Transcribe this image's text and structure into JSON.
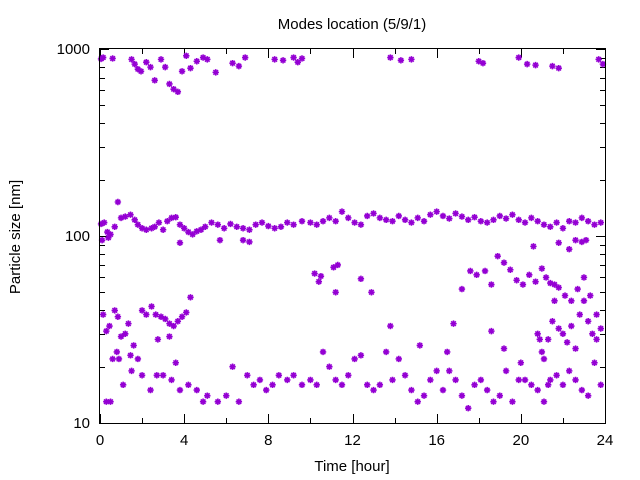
{
  "chart_data": {
    "type": "scatter",
    "title": "Modes location (5/9/1)",
    "xlabel": "Time [hour]",
    "ylabel": "Particle size [nm]",
    "xlim": [
      0,
      24
    ],
    "ylim": [
      10,
      1000
    ],
    "yscale": "log",
    "x_ticks": [
      0,
      4,
      8,
      12,
      16,
      20,
      24
    ],
    "y_ticks": [
      10,
      100,
      1000
    ],
    "x_tick_labels": [
      "0",
      "4",
      "8",
      "12",
      "16",
      "20",
      "24"
    ],
    "y_tick_labels": [
      "10",
      "100",
      "1000"
    ],
    "grid": false,
    "legend": "none",
    "marker_color": "#9400d3",
    "series": [
      {
        "name": "",
        "points": [
          [
            0.05,
            885
          ],
          [
            0.15,
            900
          ],
          [
            0.6,
            890
          ],
          [
            1.5,
            880
          ],
          [
            1.65,
            830
          ],
          [
            1.8,
            780
          ],
          [
            1.95,
            760
          ],
          [
            2.2,
            850
          ],
          [
            2.4,
            800
          ],
          [
            2.6,
            680
          ],
          [
            2.9,
            880
          ],
          [
            3.1,
            800
          ],
          [
            3.3,
            650
          ],
          [
            3.5,
            610
          ],
          [
            3.7,
            590
          ],
          [
            3.9,
            760
          ],
          [
            4.1,
            920
          ],
          [
            4.3,
            790
          ],
          [
            4.6,
            860
          ],
          [
            4.9,
            900
          ],
          [
            5.1,
            880
          ],
          [
            5.5,
            750
          ],
          [
            6.3,
            840
          ],
          [
            6.6,
            810
          ],
          [
            6.9,
            900
          ],
          [
            8.3,
            880
          ],
          [
            8.7,
            870
          ],
          [
            9.2,
            900
          ],
          [
            9.4,
            850
          ],
          [
            9.6,
            890
          ],
          [
            13.8,
            900
          ],
          [
            14.3,
            870
          ],
          [
            14.8,
            880
          ],
          [
            18.0,
            860
          ],
          [
            18.2,
            840
          ],
          [
            19.9,
            900
          ],
          [
            20.3,
            830
          ],
          [
            20.7,
            820
          ],
          [
            21.5,
            810
          ],
          [
            21.8,
            790
          ],
          [
            23.7,
            880
          ],
          [
            23.9,
            830
          ],
          [
            0.05,
            116
          ],
          [
            0.2,
            118
          ],
          [
            0.35,
            105
          ],
          [
            0.5,
            102
          ],
          [
            0.7,
            112
          ],
          [
            0.85,
            152
          ],
          [
            1.0,
            125
          ],
          [
            1.2,
            127
          ],
          [
            1.45,
            130
          ],
          [
            1.65,
            122
          ],
          [
            1.8,
            115
          ],
          [
            2.0,
            110
          ],
          [
            2.2,
            108
          ],
          [
            2.45,
            110
          ],
          [
            2.6,
            112
          ],
          [
            2.8,
            118
          ],
          [
            3.0,
            108
          ],
          [
            3.2,
            120
          ],
          [
            3.4,
            125
          ],
          [
            3.6,
            126
          ],
          [
            3.8,
            115
          ],
          [
            4.0,
            110
          ],
          [
            4.2,
            105
          ],
          [
            4.4,
            102
          ],
          [
            4.6,
            106
          ],
          [
            4.8,
            108
          ],
          [
            5.0,
            112
          ],
          [
            5.3,
            118
          ],
          [
            5.6,
            115
          ],
          [
            5.9,
            110
          ],
          [
            6.2,
            116
          ],
          [
            6.5,
            112
          ],
          [
            6.8,
            110
          ],
          [
            7.1,
            108
          ],
          [
            7.4,
            115
          ],
          [
            7.7,
            118
          ],
          [
            8.0,
            113
          ],
          [
            8.3,
            110
          ],
          [
            8.6,
            112
          ],
          [
            8.9,
            118
          ],
          [
            9.2,
            115
          ],
          [
            9.6,
            120
          ],
          [
            10.0,
            118
          ],
          [
            10.3,
            115
          ],
          [
            10.6,
            120
          ],
          [
            10.9,
            125
          ],
          [
            11.2,
            120
          ],
          [
            11.5,
            135
          ],
          [
            11.8,
            125
          ],
          [
            12.1,
            118
          ],
          [
            12.4,
            115
          ],
          [
            12.7,
            128
          ],
          [
            13.0,
            132
          ],
          [
            13.3,
            125
          ],
          [
            13.6,
            122
          ],
          [
            13.9,
            120
          ],
          [
            14.2,
            128
          ],
          [
            14.5,
            122
          ],
          [
            14.8,
            118
          ],
          [
            15.1,
            125
          ],
          [
            15.4,
            120
          ],
          [
            15.7,
            130
          ],
          [
            16.0,
            135
          ],
          [
            16.3,
            128
          ],
          [
            16.6,
            124
          ],
          [
            16.9,
            132
          ],
          [
            17.2,
            127
          ],
          [
            17.5,
            122
          ],
          [
            17.8,
            126
          ],
          [
            18.1,
            120
          ],
          [
            18.4,
            118
          ],
          [
            18.7,
            122
          ],
          [
            19.0,
            128
          ],
          [
            19.3,
            124
          ],
          [
            19.6,
            130
          ],
          [
            19.9,
            122
          ],
          [
            20.2,
            118
          ],
          [
            20.5,
            125
          ],
          [
            20.8,
            120
          ],
          [
            21.1,
            115
          ],
          [
            21.4,
            112
          ],
          [
            21.7,
            118
          ],
          [
            22.0,
            110
          ],
          [
            22.3,
            120
          ],
          [
            22.6,
            118
          ],
          [
            22.9,
            125
          ],
          [
            23.2,
            120
          ],
          [
            23.5,
            115
          ],
          [
            23.8,
            118
          ],
          [
            0.1,
            95
          ],
          [
            0.4,
            98
          ],
          [
            3.8,
            92
          ],
          [
            5.7,
            95
          ],
          [
            6.8,
            95
          ],
          [
            7.1,
            93
          ],
          [
            21.8,
            92
          ],
          [
            22.6,
            95
          ],
          [
            22.9,
            93
          ],
          [
            23.1,
            95
          ],
          [
            0.15,
            38
          ],
          [
            0.3,
            31
          ],
          [
            0.45,
            33
          ],
          [
            0.7,
            40
          ],
          [
            0.85,
            37
          ],
          [
            1.0,
            29
          ],
          [
            1.2,
            30
          ],
          [
            1.35,
            34
          ],
          [
            1.6,
            26
          ],
          [
            1.8,
            22
          ],
          [
            2.0,
            40
          ],
          [
            2.2,
            38
          ],
          [
            2.45,
            42
          ],
          [
            2.65,
            38
          ],
          [
            2.9,
            37
          ],
          [
            3.1,
            36
          ],
          [
            3.3,
            34
          ],
          [
            3.5,
            33
          ],
          [
            3.7,
            35
          ],
          [
            3.9,
            37
          ],
          [
            4.1,
            39
          ],
          [
            4.3,
            47
          ],
          [
            0.6,
            22
          ],
          [
            0.8,
            24
          ],
          [
            1.45,
            23
          ],
          [
            2.75,
            28
          ],
          [
            3.3,
            29
          ],
          [
            3.6,
            21
          ],
          [
            10.2,
            63
          ],
          [
            10.4,
            57
          ],
          [
            10.5,
            61
          ],
          [
            11.1,
            68
          ],
          [
            11.3,
            70
          ],
          [
            11.2,
            50
          ],
          [
            12.4,
            59
          ],
          [
            12.9,
            50
          ],
          [
            17.6,
            65
          ],
          [
            17.9,
            62
          ],
          [
            18.3,
            65
          ],
          [
            18.6,
            55
          ],
          [
            18.9,
            78
          ],
          [
            19.2,
            72
          ],
          [
            19.5,
            66
          ],
          [
            19.8,
            58
          ],
          [
            20.1,
            55
          ],
          [
            20.4,
            62
          ],
          [
            20.7,
            57
          ],
          [
            21.0,
            67
          ],
          [
            21.2,
            60
          ],
          [
            21.4,
            56
          ],
          [
            21.6,
            55
          ],
          [
            21.8,
            53
          ],
          [
            22.1,
            48
          ],
          [
            22.4,
            45
          ],
          [
            22.7,
            52
          ],
          [
            23.0,
            60
          ],
          [
            23.3,
            48
          ],
          [
            23.6,
            38
          ],
          [
            17.2,
            52
          ],
          [
            22.3,
            85
          ],
          [
            20.6,
            88
          ],
          [
            16.8,
            34
          ],
          [
            20.8,
            30
          ],
          [
            20.9,
            28
          ],
          [
            21.0,
            24
          ],
          [
            21.1,
            22
          ],
          [
            21.3,
            28
          ],
          [
            21.5,
            35
          ],
          [
            21.6,
            45
          ],
          [
            21.8,
            32
          ],
          [
            22.0,
            30
          ],
          [
            22.2,
            27
          ],
          [
            22.4,
            33
          ],
          [
            22.6,
            25
          ],
          [
            22.8,
            38
          ],
          [
            23.0,
            45
          ],
          [
            23.2,
            35
          ],
          [
            23.4,
            30
          ],
          [
            23.6,
            28
          ],
          [
            23.8,
            32
          ],
          [
            0.3,
            13
          ],
          [
            0.5,
            13
          ],
          [
            0.9,
            22
          ],
          [
            1.1,
            16
          ],
          [
            1.5,
            19
          ],
          [
            2.0,
            18
          ],
          [
            2.4,
            15
          ],
          [
            2.7,
            18
          ],
          [
            3.0,
            18
          ],
          [
            3.4,
            17
          ],
          [
            3.8,
            15
          ],
          [
            4.2,
            16
          ],
          [
            4.6,
            15
          ],
          [
            4.9,
            13
          ],
          [
            5.1,
            14
          ],
          [
            5.6,
            13
          ],
          [
            6.0,
            14
          ],
          [
            6.3,
            20
          ],
          [
            6.6,
            13
          ],
          [
            7.0,
            18
          ],
          [
            7.3,
            16
          ],
          [
            7.6,
            17
          ],
          [
            7.9,
            15
          ],
          [
            8.2,
            16
          ],
          [
            8.5,
            18
          ],
          [
            8.9,
            17
          ],
          [
            9.2,
            18
          ],
          [
            9.6,
            16
          ],
          [
            10.0,
            17
          ],
          [
            10.3,
            16
          ],
          [
            10.6,
            24
          ],
          [
            10.9,
            20
          ],
          [
            11.2,
            17
          ],
          [
            11.5,
            16
          ],
          [
            11.8,
            18
          ],
          [
            12.1,
            22
          ],
          [
            12.4,
            23
          ],
          [
            12.7,
            16
          ],
          [
            13.0,
            15
          ],
          [
            13.3,
            16
          ],
          [
            13.6,
            24
          ],
          [
            13.9,
            17
          ],
          [
            14.2,
            22
          ],
          [
            14.5,
            18
          ],
          [
            14.8,
            15
          ],
          [
            15.1,
            13
          ],
          [
            15.4,
            14
          ],
          [
            15.7,
            17
          ],
          [
            16.0,
            19
          ],
          [
            16.3,
            15
          ],
          [
            16.6,
            19
          ],
          [
            16.9,
            17
          ],
          [
            17.2,
            14
          ],
          [
            17.5,
            12
          ],
          [
            17.8,
            16
          ],
          [
            18.1,
            17
          ],
          [
            18.4,
            15
          ],
          [
            18.7,
            13
          ],
          [
            19.0,
            14
          ],
          [
            19.3,
            19
          ],
          [
            19.6,
            13
          ],
          [
            19.9,
            17
          ],
          [
            20.2,
            17
          ],
          [
            20.5,
            16
          ],
          [
            20.8,
            15
          ],
          [
            21.1,
            13
          ],
          [
            21.4,
            17
          ],
          [
            21.7,
            18
          ],
          [
            22.0,
            16
          ],
          [
            22.3,
            19
          ],
          [
            22.6,
            17
          ],
          [
            22.9,
            15
          ],
          [
            23.2,
            14
          ],
          [
            23.5,
            21
          ],
          [
            23.8,
            16
          ],
          [
            13.8,
            33
          ],
          [
            15.2,
            26
          ],
          [
            16.5,
            24
          ],
          [
            18.6,
            31
          ],
          [
            19.2,
            25
          ],
          [
            20.0,
            21
          ],
          [
            21.3,
            16
          ]
        ]
      }
    ]
  }
}
